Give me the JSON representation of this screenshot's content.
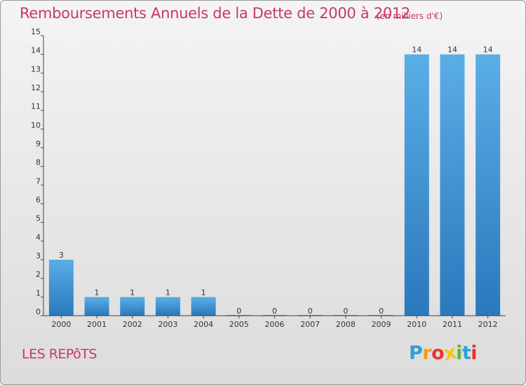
{
  "chart_data": {
    "type": "bar",
    "title": "Remboursements Annuels de la Dette de 2000 à 2012",
    "subtitle": "(en milliers d'€)",
    "categories": [
      "2000",
      "2001",
      "2002",
      "2003",
      "2004",
      "2005",
      "2006",
      "2007",
      "2008",
      "2009",
      "2010",
      "2011",
      "2012"
    ],
    "values": [
      3,
      1,
      1,
      1,
      1,
      0,
      0,
      0,
      0,
      0,
      14,
      14,
      14
    ],
    "data_labels": [
      "3",
      "1",
      "1",
      "1",
      "1",
      "0",
      "0",
      "0",
      "0",
      "0",
      "14",
      "14",
      "14"
    ],
    "yticks": [
      "0",
      "1",
      "2",
      "3",
      "4",
      "5",
      "6",
      "7",
      "8",
      "9",
      "10",
      "11",
      "12",
      "13",
      "14",
      "15"
    ],
    "ylim": [
      0,
      15
    ],
    "xlabel": "",
    "ylabel": "",
    "grid": false,
    "legend": "none",
    "bar_color": "#3a8fd6"
  },
  "footer": {
    "commune": "LES REPôTS",
    "logo_letters": [
      "P",
      "r",
      "o",
      "x",
      "i",
      "t",
      "i"
    ],
    "logo_colors": [
      "#2e9fd8",
      "#f39c12",
      "#e8342f",
      "#f7c600",
      "#63b33a",
      "#2e9fd8",
      "#e8342f"
    ]
  }
}
